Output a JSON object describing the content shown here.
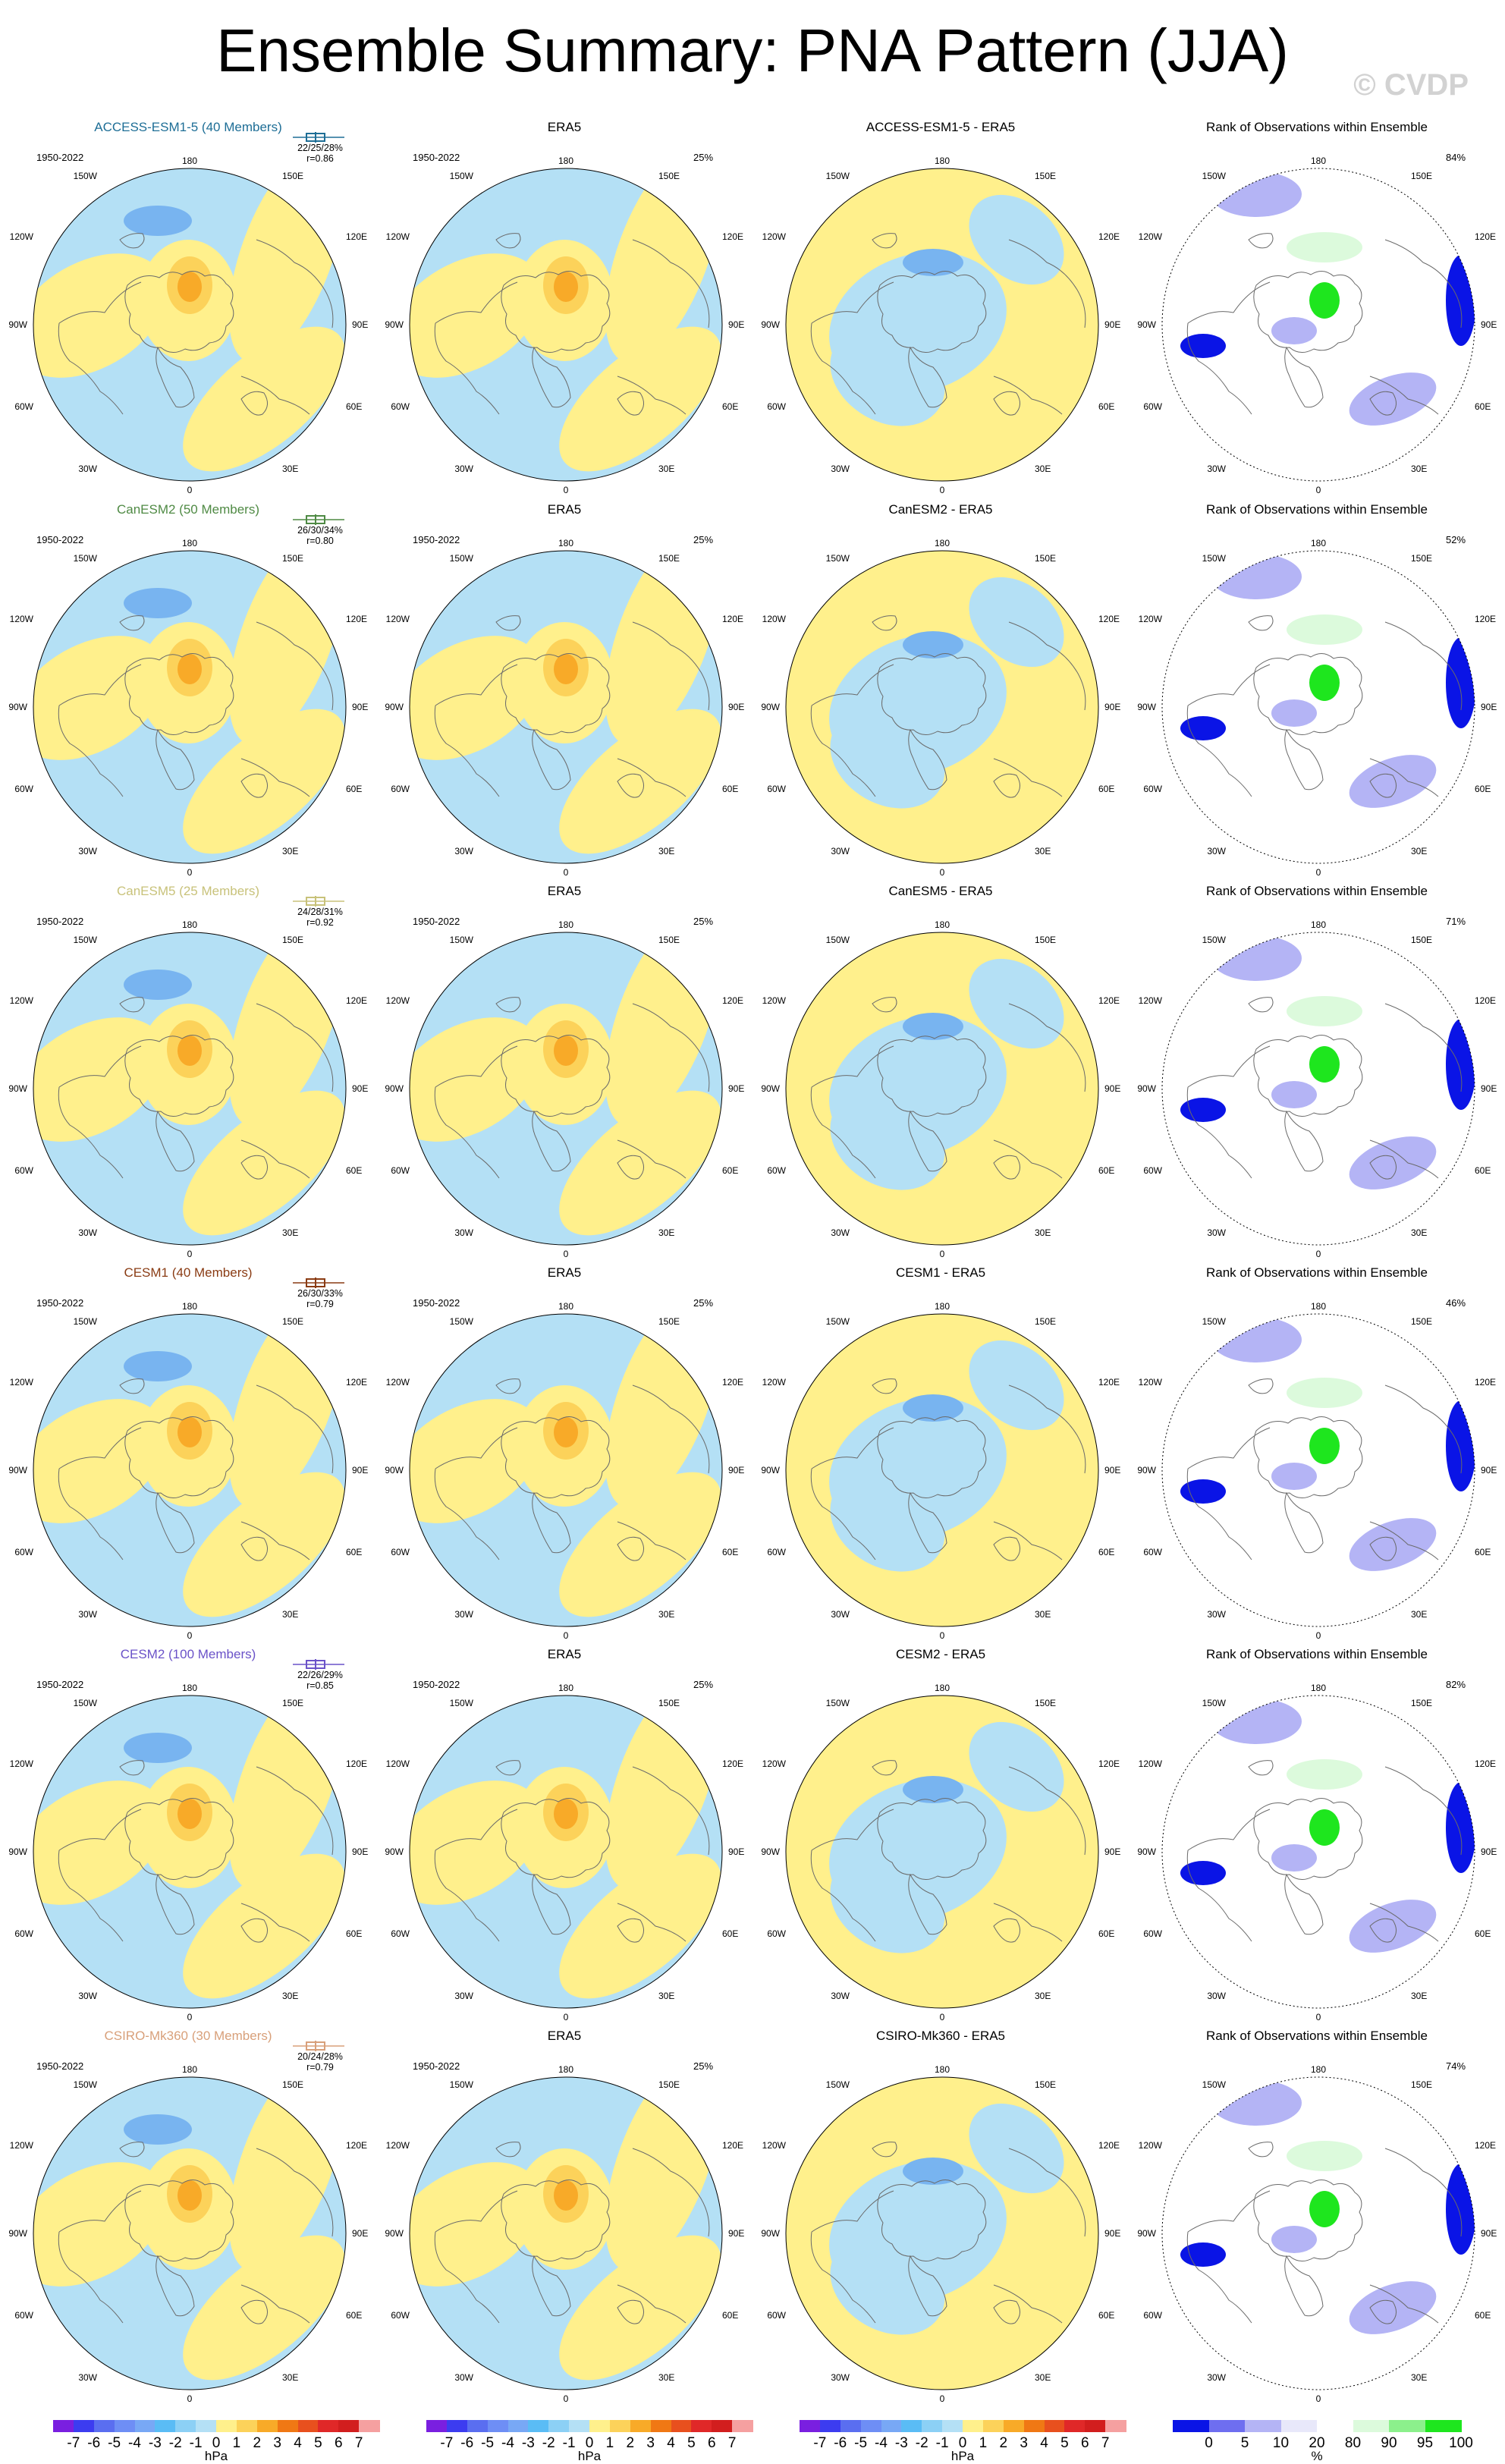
{
  "page_title": "Ensemble Summary: PNA Pattern (JJA)",
  "watermark": "© CVDP",
  "lon_labels": {
    "top": "180",
    "bottom": "0",
    "ul1": "150W",
    "ul2": "120W",
    "left": "90W",
    "ll1": "60W",
    "ll2": "30W",
    "ur1": "150E",
    "ur2": "120E",
    "right": "90E",
    "lr1": "60E",
    "lr2": "30E"
  },
  "rows": [
    {
      "model": {
        "title": "ACCESS-ESM1-5 (40 Members)",
        "title_color": "#1e6e96",
        "years": "1950-2022",
        "stats": "22/25/28%",
        "corr": "r=0.86"
      },
      "obs": {
        "title": "ERA5",
        "years": "1950-2022",
        "pct": "25%"
      },
      "diff": {
        "title": "ACCESS-ESM1-5 - ERA5"
      },
      "rank": {
        "title": "Rank of Observations within Ensemble",
        "pct": "84%"
      }
    },
    {
      "model": {
        "title": "CanESM2 (50 Members)",
        "title_color": "#4f8a44",
        "years": "1950-2022",
        "stats": "26/30/34%",
        "corr": "r=0.80"
      },
      "obs": {
        "title": "ERA5",
        "years": "1950-2022",
        "pct": "25%"
      },
      "diff": {
        "title": "CanESM2 - ERA5"
      },
      "rank": {
        "title": "Rank of Observations within Ensemble",
        "pct": "52%"
      }
    },
    {
      "model": {
        "title": "CanESM5 (25 Members)",
        "title_color": "#c8c27a",
        "years": "1950-2022",
        "stats": "24/28/31%",
        "corr": "r=0.92"
      },
      "obs": {
        "title": "ERA5",
        "years": "1950-2022",
        "pct": "25%"
      },
      "diff": {
        "title": "CanESM5 - ERA5"
      },
      "rank": {
        "title": "Rank of Observations within Ensemble",
        "pct": "71%"
      }
    },
    {
      "model": {
        "title": "CESM1 (40 Members)",
        "title_color": "#8a3c14",
        "years": "1950-2022",
        "stats": "26/30/33%",
        "corr": "r=0.79"
      },
      "obs": {
        "title": "ERA5",
        "years": "1950-2022",
        "pct": "25%"
      },
      "diff": {
        "title": "CESM1 - ERA5"
      },
      "rank": {
        "title": "Rank of Observations within Ensemble",
        "pct": "46%"
      }
    },
    {
      "model": {
        "title": "CESM2 (100 Members)",
        "title_color": "#6a52c8",
        "years": "1950-2022",
        "stats": "22/26/29%",
        "corr": "r=0.85"
      },
      "obs": {
        "title": "ERA5",
        "years": "1950-2022",
        "pct": "25%"
      },
      "diff": {
        "title": "CESM2 - ERA5"
      },
      "rank": {
        "title": "Rank of Observations within Ensemble",
        "pct": "82%"
      }
    },
    {
      "model": {
        "title": "CSIRO-Mk360 (30 Members)",
        "title_color": "#d8a07a",
        "years": "1950-2022",
        "stats": "20/24/28%",
        "corr": "r=0.79"
      },
      "obs": {
        "title": "ERA5",
        "years": "1950-2022",
        "pct": "25%"
      },
      "diff": {
        "title": "CSIRO-Mk360 - ERA5"
      },
      "rank": {
        "title": "Rank of Observations within Ensemble",
        "pct": "74%"
      }
    }
  ],
  "colorbar_hpa": {
    "labels": [
      "-7",
      "-6",
      "-5",
      "-4",
      "-3",
      "-2",
      "-1",
      "0",
      "1",
      "2",
      "3",
      "4",
      "5",
      "6",
      "7"
    ],
    "colors": [
      "#7a1fe0",
      "#3c3cf0",
      "#5a6ef0",
      "#6e8ef5",
      "#78a8f5",
      "#5abcf5",
      "#8cd0f5",
      "#b4e0f5",
      "#fff08c",
      "#fcd25a",
      "#f8aa28",
      "#f07814",
      "#e8501e",
      "#e02828",
      "#d21e1e",
      "#f5a0a0"
    ],
    "unit": "hPa"
  },
  "colorbar_rank": {
    "labels": [
      "0",
      "5",
      "10",
      "20",
      "80",
      "90",
      "95",
      "100"
    ],
    "colors": [
      "#0a14e6",
      "#6e6ef0",
      "#b4b4f5",
      "#e8e8fa",
      "#ffffff",
      "#dcfadc",
      "#8cf08c",
      "#1ee61e"
    ],
    "unit": "%"
  },
  "colors": {
    "positive_fill": "#fff08c",
    "negative_fill": "#b4e0f5",
    "positive_strong": "#fcd25a",
    "positive_stronger": "#f8aa28",
    "negative_strong": "#78b4f0",
    "coast": "#6a6a6a"
  }
}
